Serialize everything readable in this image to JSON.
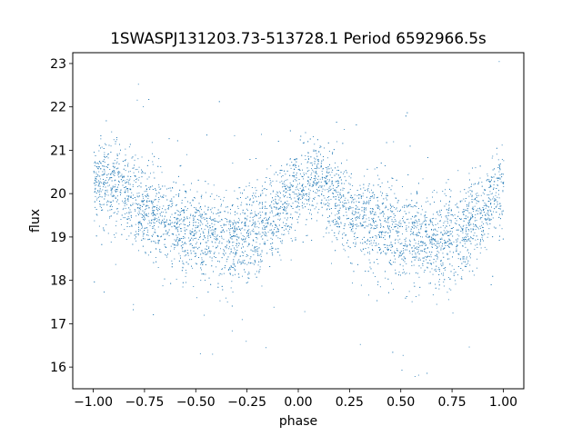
{
  "chart_data": {
    "type": "scatter",
    "title": "1SWASPJ131203.73-513728.1 Period 6592966.5s",
    "xlabel": "phase",
    "ylabel": "flux",
    "xlim": [
      -1.1,
      1.1
    ],
    "ylim": [
      15.5,
      23.25
    ],
    "xticks": [
      -1.0,
      -0.75,
      -0.5,
      -0.25,
      0.0,
      0.25,
      0.5,
      0.75,
      1.0
    ],
    "xtick_labels": [
      "−1.00",
      "−0.75",
      "−0.50",
      "−0.25",
      "0.00",
      "0.25",
      "0.50",
      "0.75",
      "1.00"
    ],
    "yticks": [
      16,
      17,
      18,
      19,
      20,
      21,
      22,
      23
    ],
    "ytick_labels": [
      "16",
      "17",
      "18",
      "19",
      "20",
      "21",
      "22",
      "23"
    ],
    "grid": false,
    "marker_color": "#1f77b4",
    "series_profile": {
      "phase": [
        -1.0,
        -0.9,
        -0.8,
        -0.7,
        -0.6,
        -0.5,
        -0.4,
        -0.3,
        -0.2,
        -0.1,
        0.0,
        0.1,
        0.2,
        0.3,
        0.4,
        0.5,
        0.6,
        0.7,
        0.8,
        0.9,
        1.0
      ],
      "median_flux": [
        20.2,
        20.3,
        19.8,
        19.5,
        19.3,
        19.0,
        18.95,
        18.9,
        19.1,
        19.6,
        20.2,
        20.3,
        19.8,
        19.5,
        19.3,
        19.0,
        18.95,
        18.9,
        19.1,
        19.6,
        20.2
      ],
      "scatter_flux": [
        0.45,
        0.5,
        0.5,
        0.5,
        0.55,
        0.55,
        0.55,
        0.55,
        0.5,
        0.5,
        0.45,
        0.5,
        0.5,
        0.5,
        0.55,
        0.55,
        0.55,
        0.55,
        0.5,
        0.5,
        0.45
      ]
    }
  }
}
